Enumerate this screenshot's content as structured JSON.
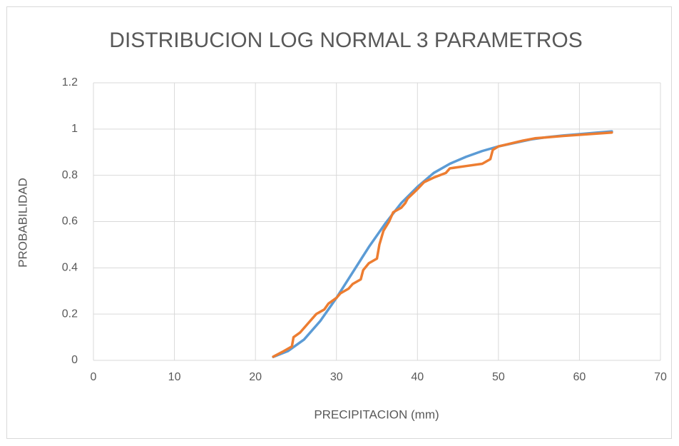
{
  "chart_data": {
    "type": "line",
    "title": "DISTRIBUCION LOG NORMAL 3 PARAMETROS",
    "x_label": "PRECIPITACION (mm)",
    "y_label": "PROBABILIDAD",
    "xlim": [
      0,
      70
    ],
    "xticks": [
      0,
      10,
      20,
      30,
      40,
      50,
      60,
      70
    ],
    "ylim": [
      0,
      1.2
    ],
    "yticks": [
      0,
      0.2,
      0.4,
      0.6,
      0.8,
      1,
      1.2
    ],
    "grid": true,
    "series": [
      {
        "color": "#5b9bd5",
        "x": [
          22.2,
          24,
          26,
          28,
          30,
          32,
          34,
          36,
          38,
          40,
          42,
          44,
          46,
          48,
          50,
          52,
          54,
          56,
          58,
          60,
          62,
          64
        ],
        "values": [
          0.015,
          0.04,
          0.09,
          0.17,
          0.27,
          0.38,
          0.49,
          0.59,
          0.68,
          0.75,
          0.81,
          0.85,
          0.88,
          0.905,
          0.925,
          0.94,
          0.955,
          0.965,
          0.972,
          0.978,
          0.984,
          0.99
        ]
      },
      {
        "color": "#ed7d31",
        "x": [
          22.2,
          23.5,
          24.5,
          24.7,
          25.5,
          26.5,
          27.5,
          28.5,
          29,
          30,
          30.5,
          31.5,
          32,
          33,
          33.3,
          34,
          35,
          35.3,
          35.8,
          36.5,
          37,
          38,
          38.5,
          38.8,
          40,
          40.8,
          42,
          43.5,
          44,
          46,
          48,
          49,
          49.3,
          50,
          53,
          54.5,
          58,
          64
        ],
        "values": [
          0.016,
          0.04,
          0.06,
          0.1,
          0.12,
          0.16,
          0.2,
          0.22,
          0.245,
          0.27,
          0.29,
          0.31,
          0.33,
          0.35,
          0.39,
          0.42,
          0.44,
          0.5,
          0.56,
          0.6,
          0.64,
          0.66,
          0.68,
          0.7,
          0.74,
          0.77,
          0.79,
          0.81,
          0.83,
          0.84,
          0.85,
          0.87,
          0.91,
          0.925,
          0.95,
          0.96,
          0.97,
          0.985
        ]
      }
    ]
  }
}
